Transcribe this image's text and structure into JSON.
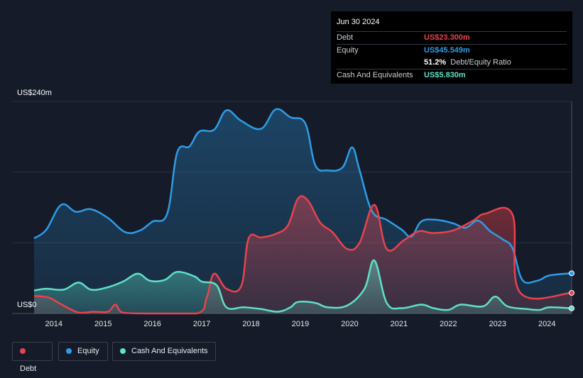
{
  "tooltip": {
    "date": "Jun 30 2024",
    "rows": [
      {
        "label": "Debt",
        "value": "US$23.300m",
        "color": "#e8434d"
      },
      {
        "label": "Equity",
        "value": "US$45.549m",
        "color": "#2e9ce6"
      },
      {
        "label": "",
        "value": "51.2%",
        "suffix": "Debt/Equity Ratio",
        "color": "#ffffff"
      },
      {
        "label": "Cash And Equivalents",
        "value": "US$5.830m",
        "color": "#5fe0c9"
      }
    ]
  },
  "chart_data": {
    "type": "area",
    "y_labels": [
      "US$240m",
      "US$0"
    ],
    "ylim": [
      0,
      240
    ],
    "xlim": [
      2013.6,
      2024.5
    ],
    "x_ticks": [
      "2014",
      "2015",
      "2016",
      "2017",
      "2018",
      "2019",
      "2020",
      "2021",
      "2022",
      "2023",
      "2024"
    ],
    "grid": true,
    "legend_position": "bottom-left",
    "series": [
      {
        "name": "Debt",
        "color": "#e8434d",
        "points": [
          [
            2013.6,
            20
          ],
          [
            2013.9,
            18
          ],
          [
            2014.1,
            12
          ],
          [
            2014.5,
            1
          ],
          [
            2014.8,
            2
          ],
          [
            2015.1,
            2
          ],
          [
            2015.25,
            10
          ],
          [
            2015.4,
            1
          ],
          [
            2015.9,
            0
          ],
          [
            2016.9,
            0
          ],
          [
            2017.1,
            18
          ],
          [
            2017.25,
            45
          ],
          [
            2017.5,
            28
          ],
          [
            2017.8,
            31
          ],
          [
            2017.95,
            85
          ],
          [
            2018.2,
            86
          ],
          [
            2018.5,
            90
          ],
          [
            2018.75,
            100
          ],
          [
            2018.95,
            130
          ],
          [
            2019.15,
            128
          ],
          [
            2019.4,
            103
          ],
          [
            2019.65,
            92
          ],
          [
            2019.95,
            73
          ],
          [
            2020.2,
            80
          ],
          [
            2020.5,
            123
          ],
          [
            2020.75,
            73
          ],
          [
            2021.1,
            83
          ],
          [
            2021.4,
            93
          ],
          [
            2021.7,
            91
          ],
          [
            2022.1,
            94
          ],
          [
            2022.5,
            105
          ],
          [
            2022.75,
            113
          ],
          [
            2023.3,
            112
          ],
          [
            2023.45,
            24
          ],
          [
            2024.5,
            23.3
          ]
        ]
      },
      {
        "name": "Equity",
        "color": "#2e9ce6",
        "points": [
          [
            2013.6,
            85
          ],
          [
            2013.85,
            95
          ],
          [
            2014.15,
            123
          ],
          [
            2014.45,
            115
          ],
          [
            2014.75,
            118
          ],
          [
            2015.1,
            108
          ],
          [
            2015.45,
            92
          ],
          [
            2015.75,
            94
          ],
          [
            2016.0,
            104
          ],
          [
            2016.3,
            113
          ],
          [
            2016.5,
            182
          ],
          [
            2016.75,
            189
          ],
          [
            2016.95,
            206
          ],
          [
            2017.25,
            208
          ],
          [
            2017.5,
            230
          ],
          [
            2017.8,
            218
          ],
          [
            2018.2,
            209
          ],
          [
            2018.5,
            231
          ],
          [
            2018.8,
            222
          ],
          [
            2019.1,
            215
          ],
          [
            2019.3,
            168
          ],
          [
            2019.55,
            162
          ],
          [
            2019.85,
            165
          ],
          [
            2020.05,
            188
          ],
          [
            2020.2,
            162
          ],
          [
            2020.45,
            116
          ],
          [
            2020.75,
            106
          ],
          [
            2021.05,
            95
          ],
          [
            2021.25,
            87
          ],
          [
            2021.45,
            104
          ],
          [
            2021.75,
            106
          ],
          [
            2022.1,
            102
          ],
          [
            2022.35,
            97
          ],
          [
            2022.6,
            105
          ],
          [
            2022.85,
            93
          ],
          [
            2023.1,
            84
          ],
          [
            2023.3,
            74
          ],
          [
            2023.5,
            38
          ],
          [
            2023.8,
            37
          ],
          [
            2024.05,
            43
          ],
          [
            2024.5,
            45.5
          ]
        ]
      },
      {
        "name": "Cash And Equivalents",
        "color": "#5fe0c9",
        "points": [
          [
            2013.6,
            26
          ],
          [
            2013.85,
            28
          ],
          [
            2014.2,
            27
          ],
          [
            2014.5,
            35
          ],
          [
            2014.75,
            27
          ],
          [
            2015.05,
            29
          ],
          [
            2015.4,
            36
          ],
          [
            2015.7,
            45
          ],
          [
            2015.95,
            37
          ],
          [
            2016.25,
            38
          ],
          [
            2016.5,
            47
          ],
          [
            2016.85,
            42
          ],
          [
            2017.0,
            36
          ],
          [
            2017.3,
            32
          ],
          [
            2017.5,
            7
          ],
          [
            2017.85,
            7
          ],
          [
            2018.2,
            5
          ],
          [
            2018.55,
            2
          ],
          [
            2018.8,
            7
          ],
          [
            2018.95,
            13
          ],
          [
            2019.3,
            12
          ],
          [
            2019.55,
            7
          ],
          [
            2019.95,
            9
          ],
          [
            2020.3,
            28
          ],
          [
            2020.5,
            60
          ],
          [
            2020.75,
            12
          ],
          [
            2021.05,
            6
          ],
          [
            2021.45,
            10
          ],
          [
            2021.7,
            6
          ],
          [
            2022.0,
            4
          ],
          [
            2022.25,
            10
          ],
          [
            2022.7,
            8
          ],
          [
            2022.95,
            19
          ],
          [
            2023.2,
            8
          ],
          [
            2023.6,
            5
          ],
          [
            2023.85,
            4
          ],
          [
            2024.05,
            7
          ],
          [
            2024.5,
            5.8
          ]
        ]
      }
    ]
  }
}
